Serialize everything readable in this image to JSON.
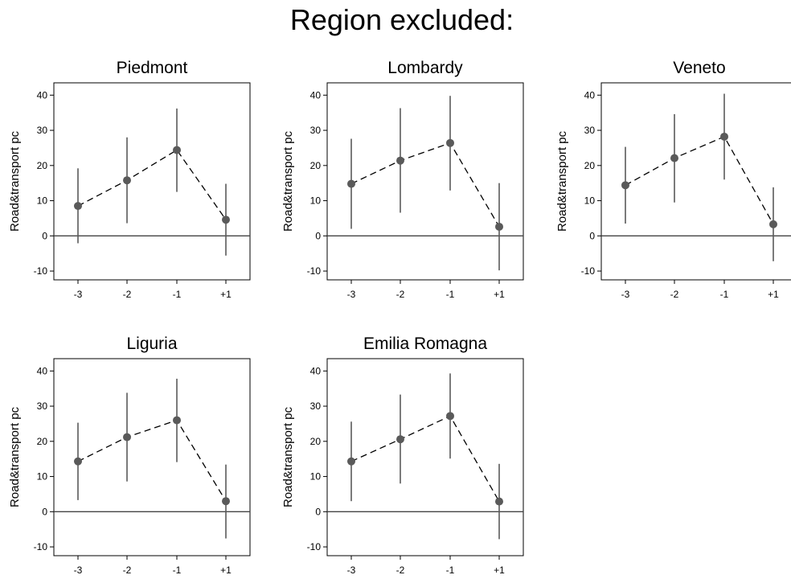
{
  "figure": {
    "title": "Region excluded:"
  },
  "colors": {
    "marker": "#5a5a5a",
    "errorbar": "#5a5a5a",
    "line": "#000000",
    "frame": "#000000",
    "zero_line": "#444444"
  },
  "chart_data": [
    {
      "type": "line",
      "title": "Piedmont",
      "ylabel": "Road&transport pc",
      "xlabel": "",
      "categories": [
        "-3",
        "-2",
        "-1",
        "+1"
      ],
      "values": [
        8.5,
        15.8,
        24.4,
        4.6
      ],
      "ci_low": [
        -2.1,
        3.6,
        12.5,
        -5.6
      ],
      "ci_high": [
        19.2,
        28.0,
        36.2,
        14.8
      ],
      "ylim": [
        -12.5,
        43.5
      ],
      "yticks": [
        -10,
        0,
        10,
        20,
        30,
        40
      ],
      "zero_line": true
    },
    {
      "type": "line",
      "title": "Lombardy",
      "ylabel": "Road&transport pc",
      "xlabel": "",
      "categories": [
        "-3",
        "-2",
        "-1",
        "+1"
      ],
      "values": [
        14.8,
        21.4,
        26.4,
        2.6
      ],
      "ci_low": [
        2.0,
        6.6,
        12.9,
        -9.8
      ],
      "ci_high": [
        27.6,
        36.3,
        39.8,
        15.0
      ],
      "ylim": [
        -12.5,
        43.5
      ],
      "yticks": [
        -10,
        0,
        10,
        20,
        30,
        40
      ],
      "zero_line": true
    },
    {
      "type": "line",
      "title": "Veneto",
      "ylabel": "Road&transport pc",
      "xlabel": "",
      "categories": [
        "-3",
        "-2",
        "-1",
        "+1"
      ],
      "values": [
        14.4,
        22.1,
        28.2,
        3.3
      ],
      "ci_low": [
        3.5,
        9.5,
        16.0,
        -7.2
      ],
      "ci_high": [
        25.3,
        34.6,
        40.4,
        13.8
      ],
      "ylim": [
        -12.5,
        43.5
      ],
      "yticks": [
        -10,
        0,
        10,
        20,
        30,
        40
      ],
      "zero_line": true
    },
    {
      "type": "line",
      "title": "Liguria",
      "ylabel": "Road&transport pc",
      "xlabel": "",
      "categories": [
        "-3",
        "-2",
        "-1",
        "+1"
      ],
      "values": [
        14.3,
        21.2,
        26.0,
        3.0
      ],
      "ci_low": [
        3.3,
        8.6,
        14.1,
        -7.6
      ],
      "ci_high": [
        25.3,
        33.8,
        37.8,
        13.4
      ],
      "ylim": [
        -12.5,
        43.5
      ],
      "yticks": [
        -10,
        0,
        10,
        20,
        30,
        40
      ],
      "zero_line": true
    },
    {
      "type": "line",
      "title": "Emilia Romagna",
      "ylabel": "Road&transport pc",
      "xlabel": "",
      "categories": [
        "-3",
        "-2",
        "-1",
        "+1"
      ],
      "values": [
        14.3,
        20.6,
        27.2,
        2.9
      ],
      "ci_low": [
        3.0,
        8.0,
        15.1,
        -7.8
      ],
      "ci_high": [
        25.6,
        33.3,
        39.3,
        13.6
      ],
      "ylim": [
        -12.5,
        43.5
      ],
      "yticks": [
        -10,
        0,
        10,
        20,
        30,
        40
      ],
      "zero_line": true
    }
  ]
}
